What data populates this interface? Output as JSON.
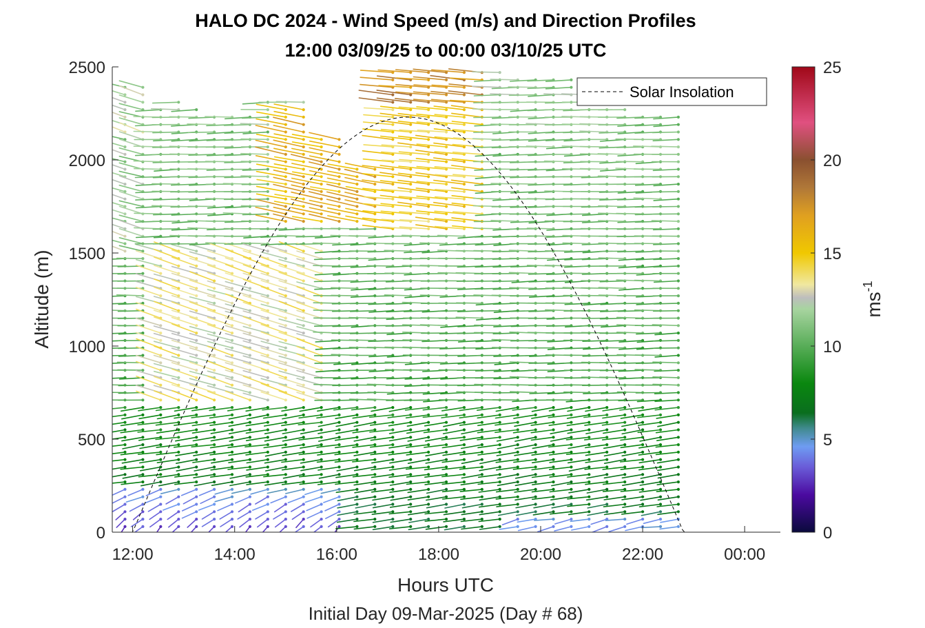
{
  "chart_data": {
    "type": "wind_barb_profile",
    "title_line1": "HALO DC 2024 - Wind Speed (m/s) and Direction Profiles",
    "title_line2": "12:00 03/09/25 to 00:00 03/10/25  UTC",
    "xlabel": "Hours UTC",
    "ylabel": "Altitude (m)",
    "subtitle": "Initial Day 09-Mar-2025 (Day # 68)",
    "x_ticks": [
      "12:00",
      "14:00",
      "16:00",
      "18:00",
      "20:00",
      "22:00",
      "00:00"
    ],
    "x_tick_hours": [
      12,
      14,
      16,
      18,
      20,
      22,
      24
    ],
    "xlim_hours": [
      11.6,
      24.7
    ],
    "y_ticks": [
      "0",
      "500",
      "1000",
      "1500",
      "2000",
      "2500"
    ],
    "ylim": [
      0,
      2500
    ],
    "colorbar": {
      "label": "ms",
      "label_exponent": "-1",
      "ticks": [
        "0",
        "5",
        "10",
        "15",
        "20",
        "25"
      ],
      "range": [
        0,
        25
      ],
      "stops": [
        {
          "v": 0,
          "c": "#0a0a3c"
        },
        {
          "v": 2,
          "c": "#4b0aa0"
        },
        {
          "v": 3.5,
          "c": "#6a5cd8"
        },
        {
          "v": 4.6,
          "c": "#6e9cf2"
        },
        {
          "v": 5.6,
          "c": "#3f8a8c"
        },
        {
          "v": 6.4,
          "c": "#0a6e1e"
        },
        {
          "v": 8.0,
          "c": "#0a870f"
        },
        {
          "v": 10.0,
          "c": "#58ad58"
        },
        {
          "v": 12.0,
          "c": "#a8d4a0"
        },
        {
          "v": 12.6,
          "c": "#bdbdbd"
        },
        {
          "v": 13.3,
          "c": "#f0e8a0"
        },
        {
          "v": 15.0,
          "c": "#f0c800"
        },
        {
          "v": 17.0,
          "c": "#e0a020"
        },
        {
          "v": 18.5,
          "c": "#b07838"
        },
        {
          "v": 20.0,
          "c": "#8a5030"
        },
        {
          "v": 22.0,
          "c": "#e05080"
        },
        {
          "v": 25.0,
          "c": "#a00818"
        }
      ]
    },
    "legend": {
      "label": "Solar Insolation",
      "placement": "top-right",
      "line_style": "dashed",
      "color": "#000000"
    },
    "solar_insolation": {
      "sunrise_hour": 12.0,
      "sunset_hour": 22.8,
      "peak_hour": 17.4,
      "peak_altitude_equiv": 2230
    },
    "profile_hours": [
      11.85,
      12.2,
      12.55,
      12.9,
      13.25,
      13.6,
      13.95,
      14.3,
      14.65,
      15.0,
      15.35,
      15.7,
      16.05,
      16.4,
      16.75,
      17.1,
      17.45,
      17.8,
      18.15,
      18.5,
      18.85,
      19.2,
      19.55,
      19.9,
      20.25,
      20.6,
      20.95,
      21.3,
      21.65,
      22.0,
      22.35,
      22.7
    ],
    "altitude_levels_m": {
      "start": 30,
      "end": 2490,
      "step": 40
    },
    "wind_regimes": [
      {
        "region": "surface layer, 12:00-16:00, 0-250 m",
        "speed_ms": 3.5,
        "direction_deg_from": 200
      },
      {
        "region": "surface layer, 19:30-22:45, 0-80 m",
        "speed_ms": 4.5,
        "direction_deg_from": 250
      },
      {
        "region": "boundary layer, 250-700 m",
        "speed_ms": 8,
        "direction_deg_from": 255
      },
      {
        "region": "mid-levels, 12:30-16:00, 700-1500 m",
        "speed_ms": 13.5,
        "direction_deg_from": 300
      },
      {
        "region": "upper levels, 15:00-16:45, 1700-2300 m",
        "speed_ms": 16.5,
        "direction_deg_from": 290
      },
      {
        "region": "upper levels, 17:00-19:00, 1600-2500 m",
        "speed_ms": 15,
        "direction_deg_from": 280
      },
      {
        "region": "afternoon/evening, 17:00-22:45, 300-2300 m",
        "speed_ms": 9.5,
        "direction_deg_from": 270
      }
    ]
  }
}
